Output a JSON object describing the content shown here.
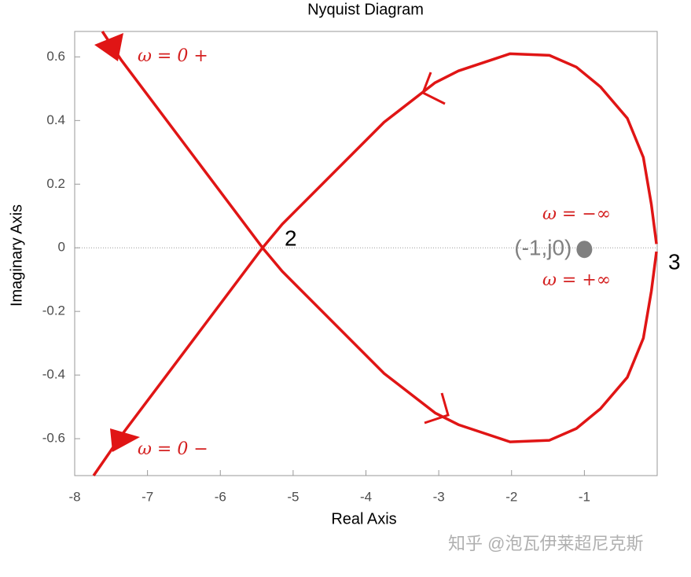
{
  "chart_data": {
    "type": "line",
    "title": "Nyquist Diagram",
    "x_label": "Real Axis",
    "y_label": "Imaginary Axis",
    "xlim": [
      -8,
      0
    ],
    "ylim": [
      -0.716,
      0.68
    ],
    "xticks": [
      -8,
      -7,
      -6,
      -5,
      -4,
      -3,
      -2,
      -1
    ],
    "yticks": [
      -0.6,
      -0.4,
      -0.2,
      0,
      0.2,
      0.4,
      0.6
    ],
    "grid": false,
    "zero_line": true,
    "series": [
      {
        "color": "#e01515",
        "x": [
          -7.62,
          -7.36,
          -5.42,
          -5.15,
          -3.75,
          -3.05,
          -2.73,
          -2.02,
          -1.48,
          -1.11,
          -0.78,
          -0.41,
          -0.19,
          -0.08,
          -0.01
        ],
        "values": [
          0.68,
          0.59,
          0,
          -0.074,
          -0.395,
          -0.519,
          -0.556,
          -0.61,
          -0.605,
          -0.568,
          -0.506,
          -0.407,
          -0.284,
          -0.136,
          -0.012
        ]
      },
      {
        "color": "#e01515",
        "x": [
          -0.01,
          -0.08,
          -0.19,
          -0.41,
          -0.78,
          -1.11,
          -1.48,
          -2.02,
          -2.73,
          -3.05,
          -3.75,
          -5.15,
          -5.42,
          -7.36,
          -7.74
        ],
        "values": [
          0.012,
          0.136,
          0.284,
          0.407,
          0.506,
          0.568,
          0.605,
          0.61,
          0.556,
          0.519,
          0.395,
          0.074,
          0,
          -0.59,
          -0.716
        ]
      }
    ],
    "point": {
      "x": -1,
      "y": 0,
      "label": "(-1,j0)",
      "color": "#808080"
    },
    "annotations": [
      "ω = 0 +",
      "ω = 0 −",
      "ω = −∞",
      "ω = +∞",
      "2",
      "3"
    ],
    "watermark": "知乎 @泡瓦伊莱超尼克斯"
  }
}
